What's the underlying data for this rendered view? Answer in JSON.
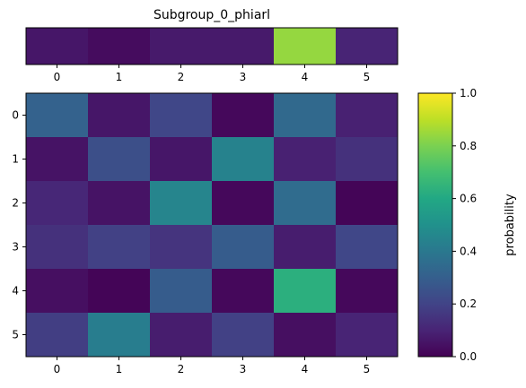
{
  "chart_data": [
    {
      "type": "heatmap",
      "title": "Subgroup_0_phiarl",
      "xlabel": "",
      "ylabel": "",
      "x_ticks": [
        "0",
        "1",
        "2",
        "3",
        "4",
        "5"
      ],
      "values": [
        [
          0.06,
          0.03,
          0.07,
          0.07,
          0.84,
          0.1
        ]
      ]
    },
    {
      "type": "heatmap",
      "title": "",
      "xlabel": "",
      "ylabel": "",
      "x_ticks": [
        "0",
        "1",
        "2",
        "3",
        "4",
        "5"
      ],
      "y_ticks": [
        "0",
        "1",
        "2",
        "3",
        "4",
        "5"
      ],
      "values": [
        [
          0.31,
          0.06,
          0.21,
          0.02,
          0.34,
          0.09
        ],
        [
          0.05,
          0.24,
          0.06,
          0.44,
          0.09,
          0.14
        ],
        [
          0.11,
          0.05,
          0.45,
          0.02,
          0.35,
          0.01
        ],
        [
          0.14,
          0.19,
          0.15,
          0.29,
          0.08,
          0.21
        ],
        [
          0.04,
          0.01,
          0.29,
          0.02,
          0.63,
          0.02
        ],
        [
          0.18,
          0.42,
          0.08,
          0.19,
          0.04,
          0.1
        ]
      ]
    }
  ],
  "colorbar": {
    "label": "probability",
    "min": 0.0,
    "max": 1.0,
    "ticks": [
      "0.0",
      "0.2",
      "0.4",
      "0.6",
      "0.8",
      "1.0"
    ],
    "colormap": "viridis"
  }
}
